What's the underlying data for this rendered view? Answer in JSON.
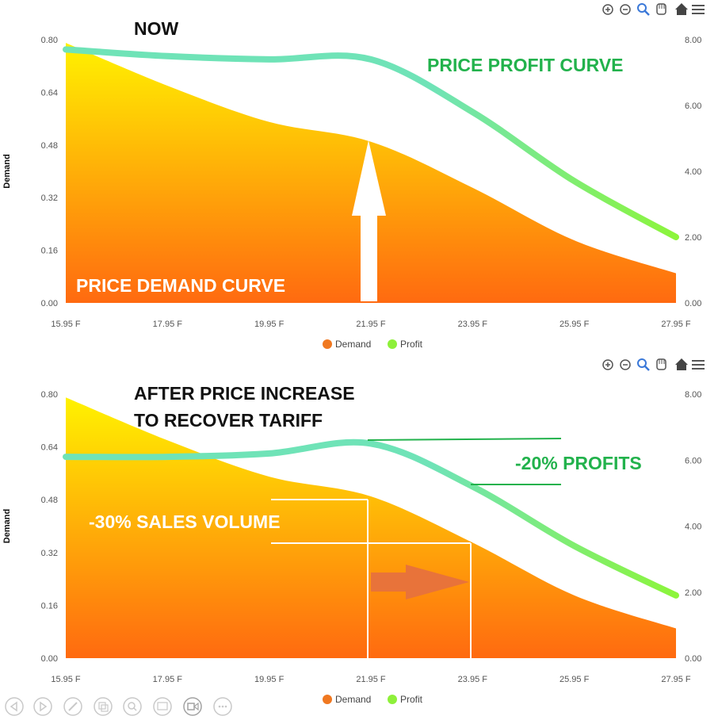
{
  "colors": {
    "demand_top": "#fff200",
    "demand_bottom": "#ff6a10",
    "profit_start": "#6fe3b7",
    "profit_end": "#8cf53b",
    "legend_demand": "#f07820",
    "legend_profit": "#8ef03a",
    "annotation_green": "#22b24c",
    "arrow_orange": "#e8733a"
  },
  "toolbar_icons": [
    "zoom-in-icon",
    "zoom-out-icon",
    "magnifier-icon",
    "pan-hand-icon",
    "home-icon",
    "menu-icon"
  ],
  "bottom_controls": [
    "prev-icon",
    "next-icon",
    "pen-icon",
    "copy-icon",
    "search-icon",
    "subtitles-icon",
    "video-icon",
    "more-icon"
  ],
  "chart_data": [
    {
      "type": "area",
      "ylabel": "Demand",
      "x": [
        "15.95 F",
        "17.95 F",
        "19.95 F",
        "21.95 F",
        "23.95 F",
        "25.95 F",
        "27.95 F"
      ],
      "x_ticks": [
        "15.95 F",
        "17.95 F",
        "19.95 F",
        "21.95 F",
        "23.95 F",
        "25.95 F",
        "27.95 F"
      ],
      "y_ticks": [
        "0.00",
        "0.16",
        "0.32",
        "0.48",
        "0.64",
        "0.80"
      ],
      "y2_ticks": [
        "0.00",
        "2.00",
        "4.00",
        "6.00",
        "8.00"
      ],
      "ylim": [
        0,
        0.8
      ],
      "y2lim": [
        0,
        8
      ],
      "series": [
        {
          "name": "Demand",
          "axis": "left",
          "values": [
            0.79,
            0.66,
            0.55,
            0.49,
            0.35,
            0.19,
            0.09
          ]
        },
        {
          "name": "Profit",
          "axis": "right",
          "values": [
            7.7,
            7.5,
            7.4,
            7.4,
            5.8,
            3.7,
            2.0
          ]
        }
      ],
      "legend": [
        "Demand",
        "Profit"
      ],
      "legend_position": "bottom",
      "annotations": {
        "now": "NOW",
        "profit_curve": "PRICE PROFIT CURVE",
        "demand_curve": "PRICE DEMAND CURVE"
      }
    },
    {
      "type": "area",
      "ylabel": "Demand",
      "x": [
        "15.95 F",
        "17.95 F",
        "19.95 F",
        "21.95 F",
        "23.95 F",
        "25.95 F",
        "27.95 F"
      ],
      "x_ticks": [
        "15.95 F",
        "17.95 F",
        "19.95 F",
        "21.95 F",
        "23.95 F",
        "25.95 F",
        "27.95 F"
      ],
      "y_ticks": [
        "0.00",
        "0.16",
        "0.32",
        "0.48",
        "0.64",
        "0.80"
      ],
      "y2_ticks": [
        "0.00",
        "2.00",
        "4.00",
        "6.00",
        "8.00"
      ],
      "ylim": [
        0,
        0.8
      ],
      "y2lim": [
        0,
        8
      ],
      "series": [
        {
          "name": "Demand",
          "axis": "left",
          "values": [
            0.79,
            0.66,
            0.55,
            0.49,
            0.35,
            0.19,
            0.09
          ]
        },
        {
          "name": "Profit",
          "axis": "right",
          "values": [
            6.1,
            6.1,
            6.2,
            6.5,
            5.2,
            3.4,
            1.9
          ]
        }
      ],
      "legend": [
        "Demand",
        "Profit"
      ],
      "legend_position": "bottom",
      "annotations": {
        "title_line1": "AFTER PRICE INCREASE",
        "title_line2": "TO RECOVER TARIFF",
        "profits": "-20% PROFITS",
        "sales": "-30% SALES VOLUME"
      }
    }
  ]
}
